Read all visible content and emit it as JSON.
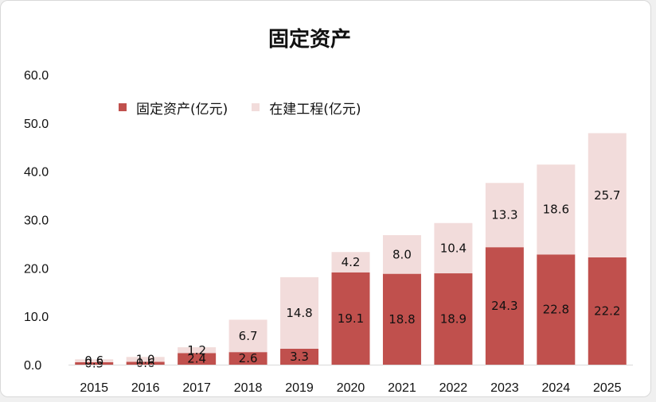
{
  "chart_data": {
    "type": "bar",
    "stacked": true,
    "title": "固定资产",
    "categories": [
      "2015",
      "2016",
      "2017",
      "2018",
      "2019",
      "2020",
      "2021",
      "2022",
      "2023",
      "2024",
      "2025"
    ],
    "series": [
      {
        "name": "固定资产(亿元)",
        "color": "#c0504d",
        "values": [
          0.5,
          0.6,
          2.4,
          2.6,
          3.3,
          19.1,
          18.8,
          18.9,
          24.3,
          22.8,
          22.2
        ]
      },
      {
        "name": "在建工程(亿元)",
        "color": "#f2dcdb",
        "values": [
          0.6,
          1.0,
          1.2,
          6.7,
          14.8,
          4.2,
          8.0,
          10.4,
          13.3,
          18.6,
          25.7
        ]
      }
    ],
    "y_ticks": [
      "0.0",
      "10.0",
      "20.0",
      "30.0",
      "40.0",
      "50.0",
      "60.0"
    ],
    "ylim": [
      0,
      60
    ],
    "grid": false,
    "legend_position": "top-left"
  }
}
